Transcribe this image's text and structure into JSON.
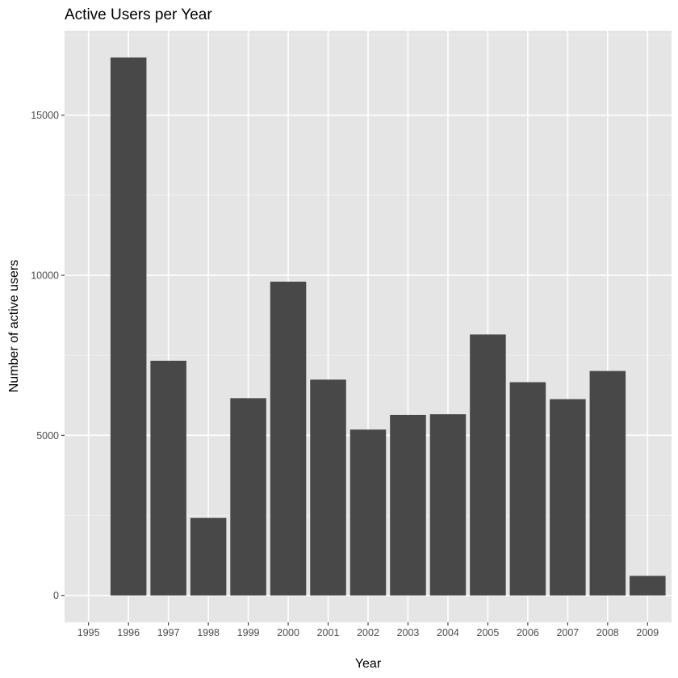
{
  "colors": {
    "panel_background": "#e5e5e5",
    "grid_major": "#ffffff",
    "grid_minor": "#f0f0f0",
    "bar_fill": "#484848",
    "tick_text": "#4d4d4d",
    "title_text": "#000000"
  },
  "chart_data": {
    "type": "bar",
    "title": "Active Users per Year",
    "xlabel": "Year",
    "ylabel": "Number of active users",
    "categories": [
      "1995",
      "1996",
      "1997",
      "1998",
      "1999",
      "2000",
      "2001",
      "2002",
      "2003",
      "2004",
      "2005",
      "2006",
      "2007",
      "2008",
      "2009"
    ],
    "values": [
      0,
      16800,
      7330,
      2420,
      6160,
      9800,
      6740,
      5180,
      5640,
      5660,
      8150,
      6660,
      6130,
      7010,
      610
    ],
    "yticks": [
      0,
      5000,
      10000,
      15000
    ],
    "ytick_labels": [
      "0",
      "5000",
      "10000",
      "15000"
    ],
    "ylim": [
      -840,
      17640
    ],
    "grid": true,
    "legend": "none"
  }
}
